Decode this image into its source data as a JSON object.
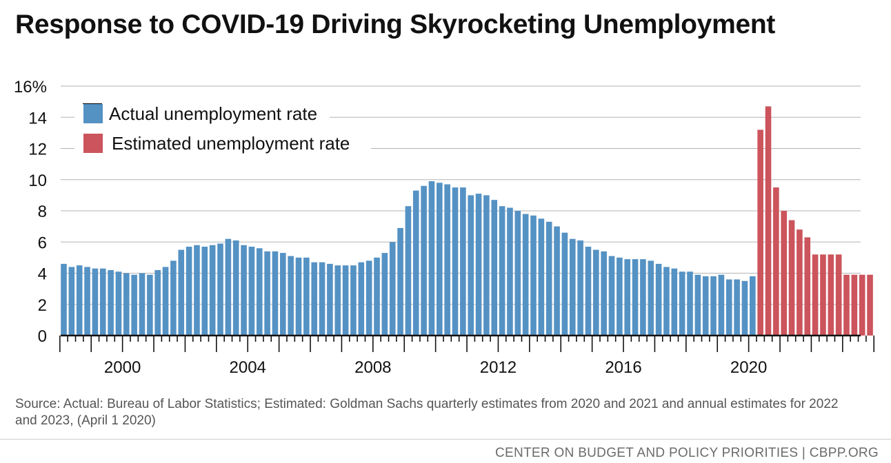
{
  "title": "Response to COVID-19 Driving Skyrocketing Unemployment",
  "source_note": "Source: Actual: Bureau of Labor Statistics; Estimated: Goldman Sachs quarterly estimates from 2020 and 2021 and annual estimates for 2022 and 2023, (April 1 2020)",
  "footer": "CENTER ON BUDGET AND POLICY PRIORITIES | CBPP.ORG",
  "colors": {
    "actual": "#5592c4",
    "estimated": "#cc545c",
    "grid": "#b3b3b3",
    "axis": "#111111"
  },
  "chart_data": {
    "type": "bar",
    "ylim": [
      0,
      16
    ],
    "y_ticks": [
      "0",
      "2",
      "4",
      "6",
      "8",
      "10",
      "12",
      "14",
      "16%"
    ],
    "x_tick_labels": [
      "2000",
      "2004",
      "2008",
      "2012",
      "2016",
      "2020"
    ],
    "grid": true,
    "legend_placement": "top-left",
    "x_start": "1998 Q1",
    "x_frequency": "quarterly",
    "series": [
      {
        "name": "Actual unemployment rate",
        "start": "1998 Q1",
        "values": [
          4.6,
          4.4,
          4.5,
          4.4,
          4.3,
          4.3,
          4.2,
          4.1,
          4.0,
          3.9,
          4.0,
          3.9,
          4.2,
          4.4,
          4.8,
          5.5,
          5.7,
          5.8,
          5.7,
          5.8,
          5.9,
          6.2,
          6.1,
          5.8,
          5.7,
          5.6,
          5.4,
          5.4,
          5.3,
          5.1,
          5.0,
          5.0,
          4.7,
          4.7,
          4.6,
          4.5,
          4.5,
          4.5,
          4.7,
          4.8,
          5.0,
          5.3,
          6.0,
          6.9,
          8.3,
          9.3,
          9.6,
          9.9,
          9.8,
          9.7,
          9.5,
          9.5,
          9.0,
          9.1,
          9.0,
          8.7,
          8.3,
          8.2,
          8.0,
          7.8,
          7.7,
          7.5,
          7.3,
          7.0,
          6.6,
          6.2,
          6.1,
          5.7,
          5.5,
          5.4,
          5.1,
          5.0,
          4.9,
          4.9,
          4.9,
          4.8,
          4.6,
          4.4,
          4.3,
          4.1,
          4.1,
          3.9,
          3.8,
          3.8,
          3.9,
          3.6,
          3.6,
          3.5,
          3.8
        ]
      },
      {
        "name": "Estimated unemployment rate",
        "start": "2020 Q2",
        "values": [
          13.2,
          14.7,
          9.5,
          8.0,
          7.4,
          6.8,
          6.3,
          5.2,
          5.2,
          5.2,
          5.2,
          3.9,
          3.9,
          3.9,
          3.9
        ]
      }
    ]
  }
}
